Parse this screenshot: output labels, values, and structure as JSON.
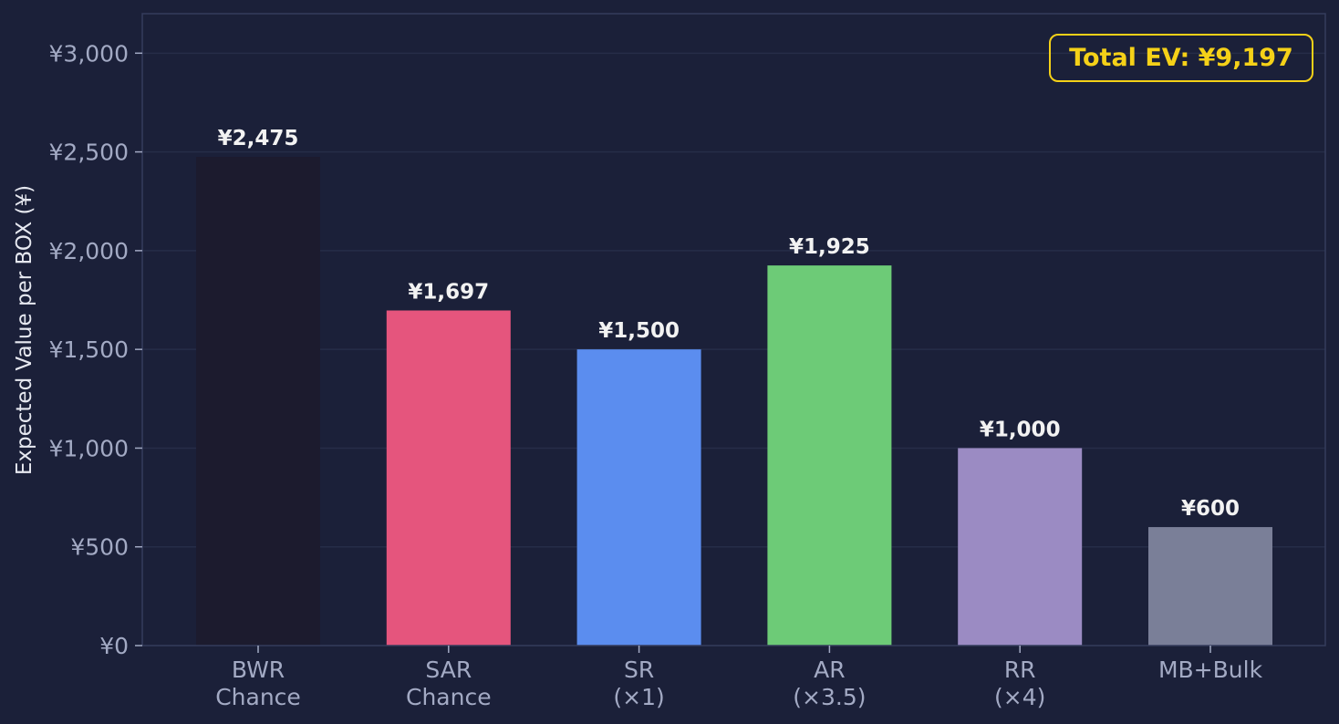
{
  "chart_data": {
    "type": "bar",
    "categories": [
      [
        "BWR",
        "Chance"
      ],
      [
        "SAR",
        "Chance"
      ],
      [
        "SR",
        "(×1)"
      ],
      [
        "AR",
        "(×3.5)"
      ],
      [
        "RR",
        "(×4)"
      ],
      [
        "MB+Bulk"
      ]
    ],
    "values": [
      2475,
      1697,
      1500,
      1925,
      1000,
      600
    ],
    "value_labels": [
      "¥2,475",
      "¥1,697",
      "¥1,500",
      "¥1,925",
      "¥1,000",
      "¥600"
    ],
    "colors": [
      "#1c1b2e",
      "#e5557d",
      "#5b8def",
      "#6dcb77",
      "#9b8bc3",
      "#7a7f98"
    ],
    "ylabel": "Expected Value per BOX (¥)",
    "xlabel": "",
    "ylim": [
      0,
      3200
    ],
    "yticks": [
      0,
      500,
      1000,
      1500,
      2000,
      2500,
      3000
    ],
    "ytick_labels": [
      "¥0",
      "¥500",
      "¥1,000",
      "¥1,500",
      "¥2,000",
      "¥2,500",
      "¥3,000"
    ],
    "grid": true,
    "annotation": "Total EV: ¥9,197",
    "annotation_placement": "top-right",
    "theme": {
      "background": "#1b2039",
      "grid": "#262d48",
      "axis": "#353c5c",
      "tick_text": "#a3aac4",
      "label_text": "#e6e8f0",
      "annotation_color": "#f5d118"
    }
  }
}
